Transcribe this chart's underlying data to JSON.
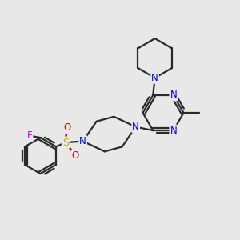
{
  "bg_color": "#e8e8e8",
  "bond_color": "#2a2a2a",
  "bond_width": 1.6,
  "N_color": "#0000ee",
  "O_color": "#dd0000",
  "S_color": "#bbbb00",
  "F_color": "#dd00dd",
  "font_size": 8.5,
  "fig_width": 3.0,
  "fig_height": 3.0,
  "dpi": 100,
  "xlim": [
    0,
    10
  ],
  "ylim": [
    0,
    10
  ]
}
